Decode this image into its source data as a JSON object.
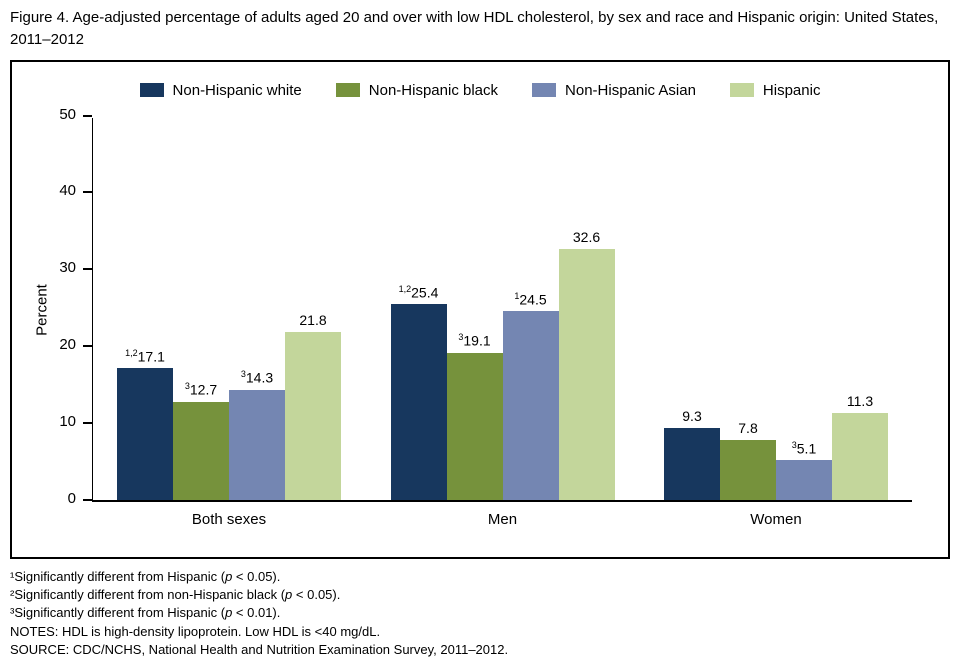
{
  "title": "Figure 4. Age-adjusted percentage of adults aged 20 and over with low HDL cholesterol, by sex and race and Hispanic origin: United States, 2011–2012",
  "chart_data": {
    "type": "bar",
    "categories": [
      "Both sexes",
      "Men",
      "Women"
    ],
    "series": [
      {
        "name": "Non-Hispanic white",
        "color": "#17375E",
        "values": [
          17.1,
          25.4,
          9.3
        ],
        "superscripts": [
          "1,2",
          "1,2",
          ""
        ]
      },
      {
        "name": "Non-Hispanic black",
        "color": "#76923C",
        "values": [
          12.7,
          19.1,
          7.8
        ],
        "superscripts": [
          "3",
          "3",
          ""
        ]
      },
      {
        "name": "Non-Hispanic Asian",
        "color": "#7486B2",
        "values": [
          14.3,
          24.5,
          5.1
        ],
        "superscripts": [
          "3",
          "1",
          "3"
        ]
      },
      {
        "name": "Hispanic",
        "color": "#C3D69B",
        "values": [
          21.8,
          32.6,
          11.3
        ],
        "superscripts": [
          "",
          "",
          ""
        ]
      }
    ],
    "title": "",
    "xlabel": "",
    "ylabel": "Percent",
    "ylim": [
      0,
      50
    ],
    "yticks": [
      0,
      10,
      20,
      30,
      40,
      50
    ],
    "legend_position": "top",
    "grid": false
  },
  "footnotes": [
    "¹Significantly different from Hispanic (p < 0.05).",
    "²Significantly different from non-Hispanic black (p < 0.05).",
    "³Significantly different from Hispanic (p < 0.01).",
    "NOTES: HDL is high-density lipoprotein. Low HDL is <40 mg/dL.",
    "SOURCE: CDC/NCHS, National Health and Nutrition Examination Survey, 2011–2012."
  ]
}
